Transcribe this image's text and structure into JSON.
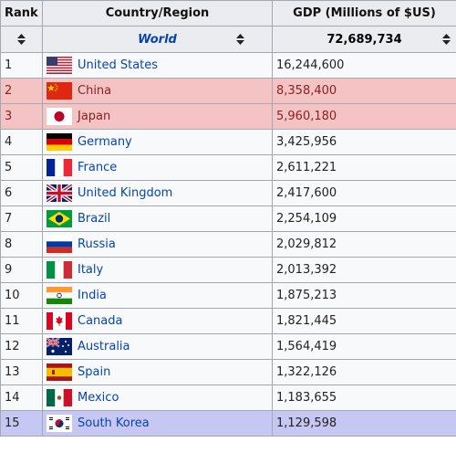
{
  "headers": {
    "rank": "Rank",
    "country": "Country/Region",
    "gdp": "GDP (Millions of $US)"
  },
  "world": {
    "label": "World",
    "gdp": "72,689,734"
  },
  "colors": {
    "highlight_red": "#f4c4c4",
    "highlight_blue": "#c7c7f3",
    "link": "#0645ad"
  },
  "rows": [
    {
      "rank": "1",
      "country": "United States",
      "gdp": "16,244,600",
      "flag": "us-flag-icon"
    },
    {
      "rank": "2",
      "country": "China",
      "gdp": "8,358,400",
      "flag": "china-flag-icon"
    },
    {
      "rank": "3",
      "country": "Japan",
      "gdp": "5,960,180",
      "flag": "japan-flag-icon"
    },
    {
      "rank": "4",
      "country": "Germany",
      "gdp": "3,425,956",
      "flag": "germany-flag-icon"
    },
    {
      "rank": "5",
      "country": "France",
      "gdp": "2,611,221",
      "flag": "france-flag-icon"
    },
    {
      "rank": "6",
      "country": "United Kingdom",
      "gdp": "2,417,600",
      "flag": "uk-flag-icon"
    },
    {
      "rank": "7",
      "country": "Brazil",
      "gdp": "2,254,109",
      "flag": "brazil-flag-icon"
    },
    {
      "rank": "8",
      "country": "Russia",
      "gdp": "2,029,812",
      "flag": "russia-flag-icon"
    },
    {
      "rank": "9",
      "country": "Italy",
      "gdp": "2,013,392",
      "flag": "italy-flag-icon"
    },
    {
      "rank": "10",
      "country": "India",
      "gdp": "1,875,213",
      "flag": "india-flag-icon"
    },
    {
      "rank": "11",
      "country": "Canada",
      "gdp": "1,821,445",
      "flag": "canada-flag-icon"
    },
    {
      "rank": "12",
      "country": "Australia",
      "gdp": "1,564,419",
      "flag": "australia-flag-icon"
    },
    {
      "rank": "13",
      "country": "Spain",
      "gdp": "1,322,126",
      "flag": "spain-flag-icon"
    },
    {
      "rank": "14",
      "country": "Mexico",
      "gdp": "1,183,655",
      "flag": "mexico-flag-icon"
    },
    {
      "rank": "15",
      "country": "South Korea",
      "gdp": "1,129,598",
      "flag": "south-korea-flag-icon"
    }
  ]
}
